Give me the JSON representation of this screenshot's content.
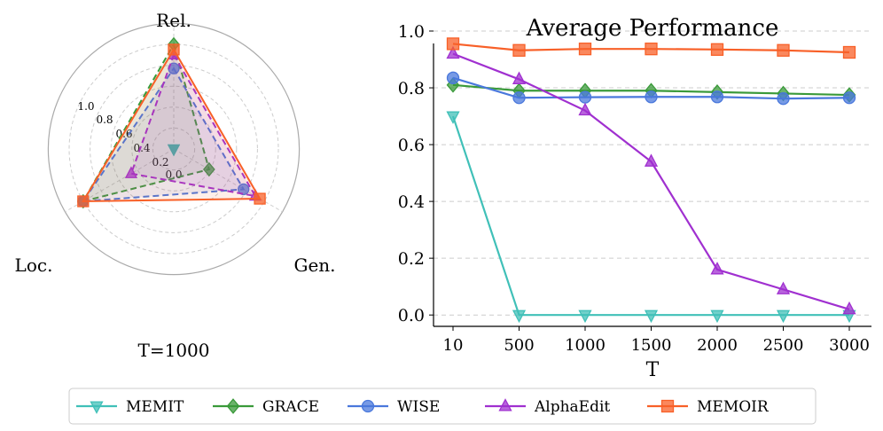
{
  "legend": [
    {
      "name": "MEMIT",
      "color": "#40c0b8",
      "marker": "triangle-down"
    },
    {
      "name": "GRACE",
      "color": "#3a9a3a",
      "marker": "diamond"
    },
    {
      "name": "WISE",
      "color": "#4a78dc",
      "marker": "circle"
    },
    {
      "name": "AlphaEdit",
      "color": "#a030d0",
      "marker": "triangle-up"
    },
    {
      "name": "MEMOIR",
      "color": "#f86028",
      "marker": "square"
    }
  ],
  "chart_data": [
    {
      "type": "radar",
      "caption": "T=1000",
      "axes": [
        "Rel.",
        "Gen.",
        "Loc."
      ],
      "r_ticks": [
        "0.0",
        "0.2",
        "0.4",
        "0.6",
        "0.8",
        "1.0"
      ],
      "rlim": [
        0,
        1
      ],
      "series": [
        {
          "name": "MEMIT",
          "values": [
            0.0,
            0.0,
            0.0
          ]
        },
        {
          "name": "GRACE",
          "values": [
            1.0,
            0.39,
            1.0
          ]
        },
        {
          "name": "WISE",
          "values": [
            0.77,
            0.77,
            1.0
          ]
        },
        {
          "name": "AlphaEdit",
          "values": [
            0.9,
            0.9,
            0.47
          ]
        },
        {
          "name": "MEMOIR",
          "values": [
            0.95,
            0.95,
            1.0
          ]
        }
      ]
    },
    {
      "type": "line",
      "title": "Average Performance",
      "xlabel": "T",
      "ylabel": "",
      "categories": [
        "10",
        "500",
        "1000",
        "1500",
        "2000",
        "2500",
        "3000"
      ],
      "ylim": [
        -0.04,
        1.0
      ],
      "yticks": [
        "0.0",
        "0.2",
        "0.4",
        "0.6",
        "0.8",
        "1.0"
      ],
      "grid": "horizontal dashed",
      "series": [
        {
          "name": "MEMIT",
          "values": [
            0.7,
            0.0,
            0.0,
            0.0,
            0.0,
            0.0,
            0.0
          ]
        },
        {
          "name": "GRACE",
          "values": [
            0.81,
            0.79,
            0.79,
            0.79,
            0.785,
            0.78,
            0.775
          ]
        },
        {
          "name": "WISE",
          "values": [
            0.835,
            0.765,
            0.767,
            0.768,
            0.768,
            0.762,
            0.765
          ]
        },
        {
          "name": "AlphaEdit",
          "values": [
            0.92,
            0.83,
            0.72,
            0.54,
            0.16,
            0.09,
            0.02
          ]
        },
        {
          "name": "MEMOIR",
          "values": [
            0.955,
            0.932,
            0.937,
            0.937,
            0.935,
            0.932,
            0.925
          ]
        }
      ]
    }
  ]
}
